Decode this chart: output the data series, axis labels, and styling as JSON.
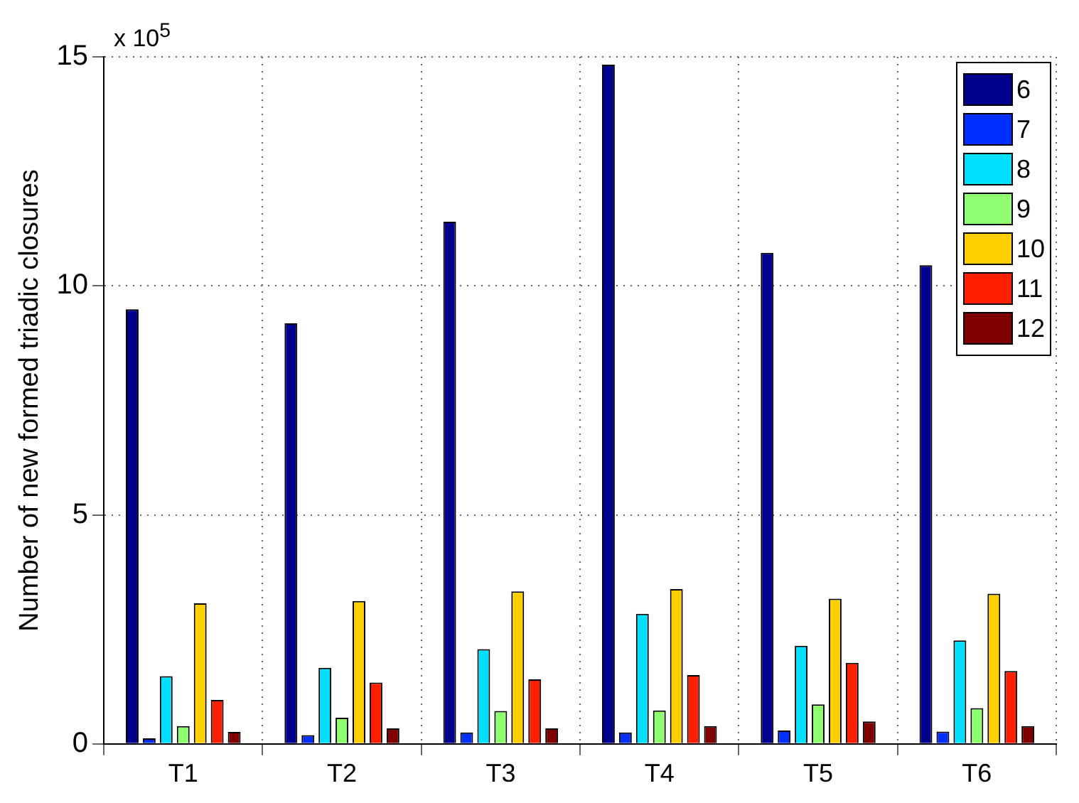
{
  "chart_data": {
    "type": "bar",
    "ylabel": "Number of new formed triadic closures",
    "annotations": [
      "x 10$^{5}$"
    ],
    "categories": [
      "T1",
      "T2",
      "T3",
      "T4",
      "T5",
      "T6"
    ],
    "series": [
      {
        "name": "6",
        "color": "#00008f",
        "values": [
          9.49,
          9.18,
          11.4,
          14.83,
          10.72,
          10.45
        ]
      },
      {
        "name": "7",
        "color": "#0030ff",
        "values": [
          0.12,
          0.19,
          0.25,
          0.25,
          0.29,
          0.27
        ]
      },
      {
        "name": "8",
        "color": "#00dfff",
        "values": [
          1.48,
          1.66,
          2.07,
          2.84,
          2.14,
          2.26
        ]
      },
      {
        "name": "9",
        "color": "#8fff70",
        "values": [
          0.39,
          0.57,
          0.72,
          0.73,
          0.86,
          0.78
        ]
      },
      {
        "name": "10",
        "color": "#ffcf00",
        "values": [
          3.07,
          3.12,
          3.33,
          3.38,
          3.17,
          3.28
        ]
      },
      {
        "name": "11",
        "color": "#ff2000",
        "values": [
          0.96,
          1.34,
          1.41,
          1.5,
          1.77,
          1.59
        ]
      },
      {
        "name": "12",
        "color": "#800000",
        "values": [
          0.26,
          0.34,
          0.34,
          0.39,
          0.49,
          0.39
        ]
      }
    ],
    "ylim": [
      0,
      15
    ],
    "yticks": [
      0,
      5,
      10,
      15
    ],
    "grid": true,
    "legend": "top right"
  }
}
